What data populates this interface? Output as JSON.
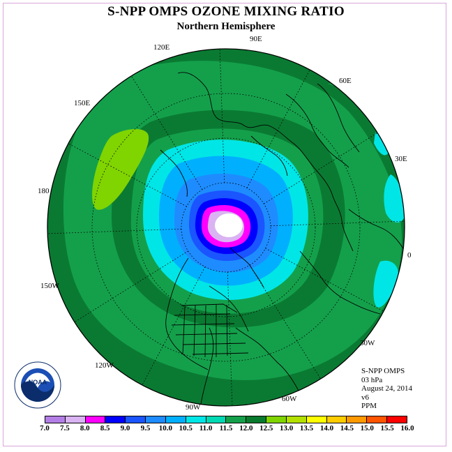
{
  "title": "S-NPP OMPS OZONE MIXING RATIO",
  "subtitle": "Northern Hemisphere",
  "longitude_labels": [
    "90E",
    "60E",
    "30E",
    "0",
    "30W",
    "60W",
    "90W",
    "120W",
    "150W",
    "180",
    "150E",
    "120E"
  ],
  "info": {
    "instrument": "S-NPP OMPS",
    "level": "03 hPa",
    "date": "August 24, 2014",
    "version": "v6",
    "units": "PPM"
  },
  "logo_text": "NOAA",
  "colorbar": {
    "labels": [
      "7.0",
      "7.5",
      "8.0",
      "8.5",
      "9.0",
      "9.5",
      "10.0",
      "10.5",
      "11.0",
      "11.5",
      "12.0",
      "12.5",
      "13.0",
      "13.5",
      "14.0",
      "14.5",
      "15.0",
      "15.5",
      "16.0"
    ],
    "colors": [
      "#b37fe6",
      "#d9b3f2",
      "#ff00ff",
      "#0000ff",
      "#1a55ff",
      "#1e8cff",
      "#00b0ff",
      "#00e6e6",
      "#00d9b3",
      "#14a04b",
      "#087a2d",
      "#80d400",
      "#b3e000",
      "#ffff00",
      "#ffcc00",
      "#ff9900",
      "#ff5500",
      "#ff0000",
      "#8b5a2b"
    ]
  },
  "field_colors": {
    "outer": "#0a7a32",
    "green": "#14a04b",
    "teal": "#00d9b3",
    "cyan": "#00e6e6",
    "lightblue": "#00b0ff",
    "blue": "#1e8cff",
    "dodger": "#1a55ff",
    "navy": "#0000ff",
    "magenta": "#ff00ff",
    "lilac": "#d9b3f2",
    "lime": "#80d400"
  }
}
